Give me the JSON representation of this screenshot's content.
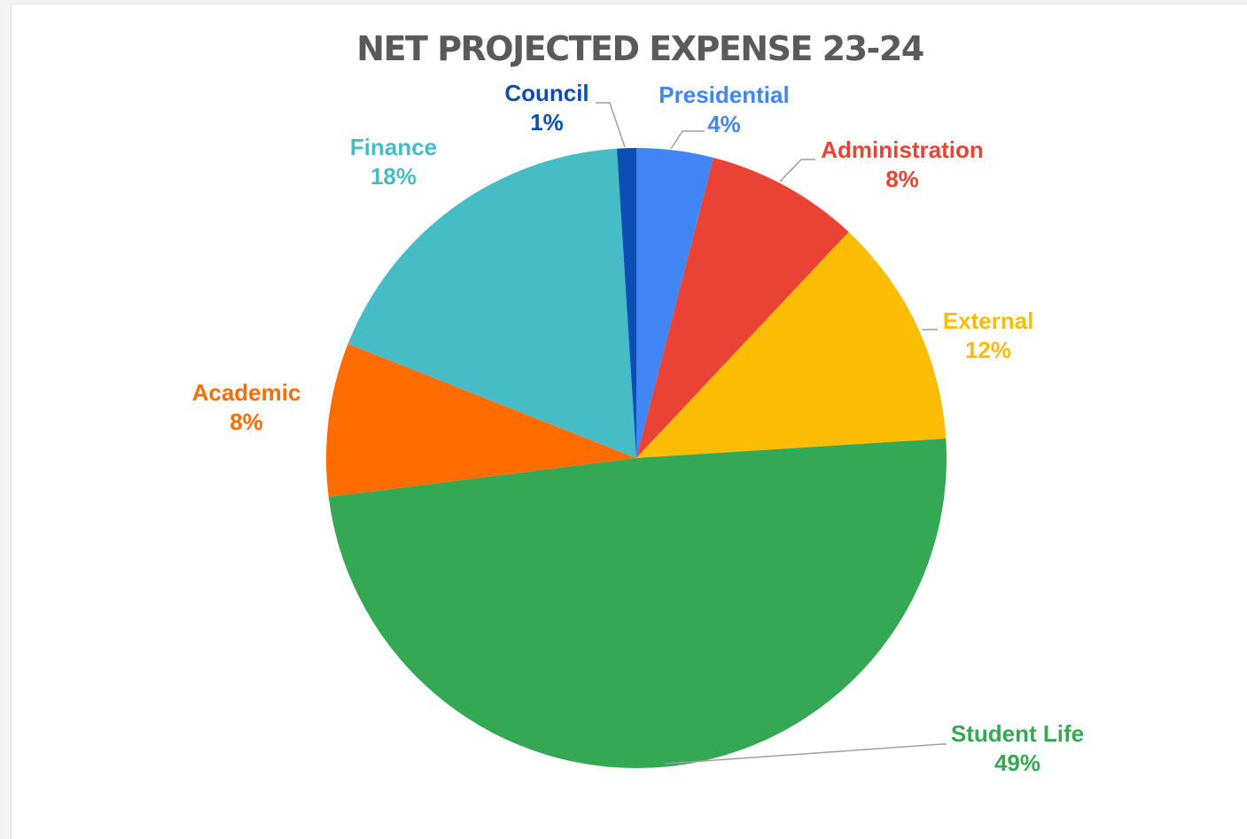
{
  "chart_data": {
    "type": "pie",
    "title": "NET PROJECTED EXPENSE 23-24",
    "slices": [
      {
        "name": "Presidential",
        "value": 4,
        "label": "4%",
        "color": "#4285f4"
      },
      {
        "name": "Administration",
        "value": 8,
        "label": "8%",
        "color": "#ea4335"
      },
      {
        "name": "External",
        "value": 12,
        "label": "12%",
        "color": "#fbbc04"
      },
      {
        "name": "Student Life",
        "value": 49,
        "label": "49%",
        "color": "#34a853"
      },
      {
        "name": "Academic",
        "value": 8,
        "label": "8%",
        "color": "#ff6d01"
      },
      {
        "name": "Finance",
        "value": 18,
        "label": "18%",
        "color": "#46bdc6"
      },
      {
        "name": "Council",
        "value": 1,
        "label": "1%",
        "color": "#0b4fb5"
      }
    ],
    "start_angle_deg": 0,
    "direction": "clockwise"
  }
}
